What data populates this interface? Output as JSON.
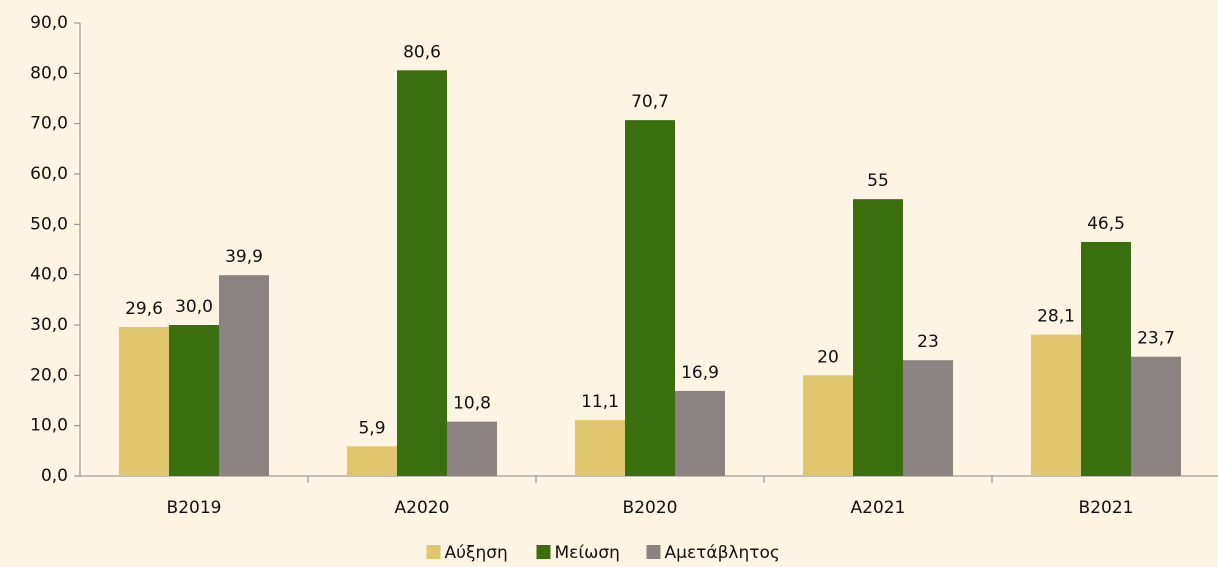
{
  "chart_data": {
    "type": "bar",
    "categories": [
      "B2019",
      "A2020",
      "B2020",
      "A2021",
      "B2021"
    ],
    "series": [
      {
        "name": "Αύξηση",
        "color": "#e0c66f",
        "values": [
          29.6,
          5.9,
          11.1,
          20,
          28.1
        ],
        "value_labels": [
          "29,6",
          "5,9",
          "11,1",
          "20",
          "28,1"
        ]
      },
      {
        "name": "Μείωση",
        "color": "#3a6e0f",
        "values": [
          30.0,
          80.6,
          70.7,
          55,
          46.5
        ],
        "value_labels": [
          "30,0",
          "80,6",
          "70,7",
          "55",
          "46,5"
        ]
      },
      {
        "name": "Αμετάβλητος",
        "color": "#8b8381",
        "values": [
          39.9,
          10.8,
          16.9,
          23,
          23.7
        ],
        "value_labels": [
          "39,9",
          "10,8",
          "16,9",
          "23",
          "23,7"
        ]
      }
    ],
    "ylim": [
      0,
      90
    ],
    "yticks": [
      {
        "value": 0,
        "label": "0,0"
      },
      {
        "value": 10,
        "label": "10,0"
      },
      {
        "value": 20,
        "label": "20,0"
      },
      {
        "value": 30,
        "label": "30,0"
      },
      {
        "value": 40,
        "label": "40,0"
      },
      {
        "value": 50,
        "label": "50,0"
      },
      {
        "value": 60,
        "label": "60,0"
      },
      {
        "value": 70,
        "label": "70,0"
      },
      {
        "value": 80,
        "label": "80,0"
      },
      {
        "value": 90,
        "label": "90,0"
      }
    ],
    "legend": "bottom"
  }
}
